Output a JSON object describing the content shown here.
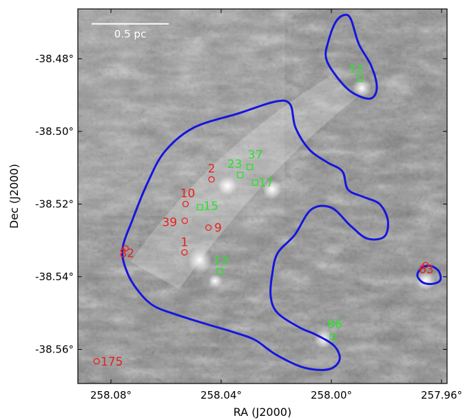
{
  "chart_data": {
    "type": "sky-image",
    "xlabel": "RA (J2000)",
    "ylabel": "Dec (J2000)",
    "xlim": [
      258.092,
      257.958
    ],
    "ylim": [
      -38.5694,
      -38.4663
    ],
    "grid": false,
    "x_ticks": [
      {
        "value": 258.08,
        "label": "258.08°"
      },
      {
        "value": 258.04,
        "label": "258.04°"
      },
      {
        "value": 258.0,
        "label": "258.00°"
      },
      {
        "value": 257.96,
        "label": "257.96°"
      }
    ],
    "y_ticks": [
      {
        "value": -38.48,
        "label": "-38.48°"
      },
      {
        "value": -38.5,
        "label": "-38.50°"
      },
      {
        "value": -38.52,
        "label": "-38.52°"
      },
      {
        "value": -38.54,
        "label": "-38.54°"
      },
      {
        "value": -38.56,
        "label": "-38.56°"
      }
    ],
    "scale_bar": {
      "label": "0.5 pc",
      "ra_start": 258.087,
      "ra_end": 258.059,
      "dec": -38.4704
    },
    "colors": {
      "red": "#e8201c",
      "green": "#27e327",
      "contour": "#1515e0",
      "bar": "#ffffff"
    },
    "red_sources": [
      {
        "id": "2",
        "ra": 258.0435,
        "dec": -38.5132
      },
      {
        "id": "10",
        "ra": 258.0529,
        "dec": -38.52
      },
      {
        "id": "39",
        "ra": 258.0532,
        "dec": -38.5246
      },
      {
        "id": "9",
        "ra": 258.0446,
        "dec": -38.5265
      },
      {
        "id": "1",
        "ra": 258.0533,
        "dec": -38.5333
      },
      {
        "id": "82",
        "ra": 258.0747,
        "dec": -38.5322
      },
      {
        "id": "63",
        "ra": 257.9658,
        "dec": -38.5368
      },
      {
        "id": "175",
        "ra": 258.0852,
        "dec": -38.5633
      }
    ],
    "green_sources": [
      {
        "id": "12",
        "ra": 257.9896,
        "dec": -38.4855
      },
      {
        "id": "23",
        "ra": 258.0331,
        "dec": -38.512
      },
      {
        "id": "37",
        "ra": 258.0296,
        "dec": -38.5098
      },
      {
        "id": "17",
        "ra": 258.0277,
        "dec": -38.5141
      },
      {
        "id": "15",
        "ra": 258.0477,
        "dec": -38.5209
      },
      {
        "id": "13",
        "ra": 258.0405,
        "dec": -38.5385
      },
      {
        "id": "86",
        "ra": 257.9995,
        "dec": -38.5566
      }
    ],
    "contours": [
      {
        "name": "main",
        "points": [
          [
            258.0758,
            -38.5325
          ],
          [
            258.072,
            -38.524
          ],
          [
            258.0666,
            -38.514
          ],
          [
            258.0604,
            -38.5055
          ],
          [
            258.05,
            -38.499
          ],
          [
            258.0335,
            -38.495
          ],
          [
            258.0203,
            -38.4918
          ],
          [
            258.015,
            -38.4925
          ],
          [
            258.013,
            -38.499
          ],
          [
            258.008,
            -38.505
          ],
          [
            258.0015,
            -38.5085
          ],
          [
            257.996,
            -38.511
          ],
          [
            257.994,
            -38.516
          ],
          [
            257.9885,
            -38.518
          ],
          [
            257.9825,
            -38.52
          ],
          [
            257.9795,
            -38.5245
          ],
          [
            257.9808,
            -38.529
          ],
          [
            257.987,
            -38.5295
          ],
          [
            257.993,
            -38.526
          ],
          [
            258.0,
            -38.521
          ],
          [
            258.0073,
            -38.5215
          ],
          [
            258.0133,
            -38.5285
          ],
          [
            258.0195,
            -38.5335
          ],
          [
            258.0215,
            -38.5395
          ],
          [
            258.022,
            -38.5455
          ],
          [
            258.0195,
            -38.55
          ],
          [
            258.0115,
            -38.554
          ],
          [
            258.0055,
            -38.556
          ],
          [
            257.999,
            -38.559
          ],
          [
            257.997,
            -38.5628
          ],
          [
            258.001,
            -38.5655
          ],
          [
            258.01,
            -38.565
          ],
          [
            258.02,
            -38.5615
          ],
          [
            258.0275,
            -38.5575
          ],
          [
            258.0345,
            -38.5555
          ],
          [
            258.0455,
            -38.553
          ],
          [
            258.056,
            -38.5505
          ],
          [
            258.0645,
            -38.548
          ],
          [
            258.07,
            -38.544
          ],
          [
            258.074,
            -38.539
          ]
        ]
      },
      {
        "name": "north",
        "points": [
          [
            258.002,
            -38.4795
          ],
          [
            258.001,
            -38.475
          ],
          [
            257.9985,
            -38.47
          ],
          [
            257.9955,
            -38.468
          ],
          [
            257.993,
            -38.469
          ],
          [
            257.99,
            -38.476
          ],
          [
            257.9855,
            -38.482
          ],
          [
            257.9835,
            -38.488
          ],
          [
            257.986,
            -38.491
          ],
          [
            257.993,
            -38.489
          ],
          [
            257.999,
            -38.484
          ]
        ]
      },
      {
        "name": "east",
        "points": [
          [
            257.9688,
            -38.5395
          ],
          [
            257.967,
            -38.5375
          ],
          [
            257.964,
            -38.537
          ],
          [
            257.961,
            -38.5385
          ],
          [
            257.9605,
            -38.541
          ],
          [
            257.9635,
            -38.542
          ],
          [
            257.967,
            -38.5415
          ]
        ]
      }
    ]
  }
}
